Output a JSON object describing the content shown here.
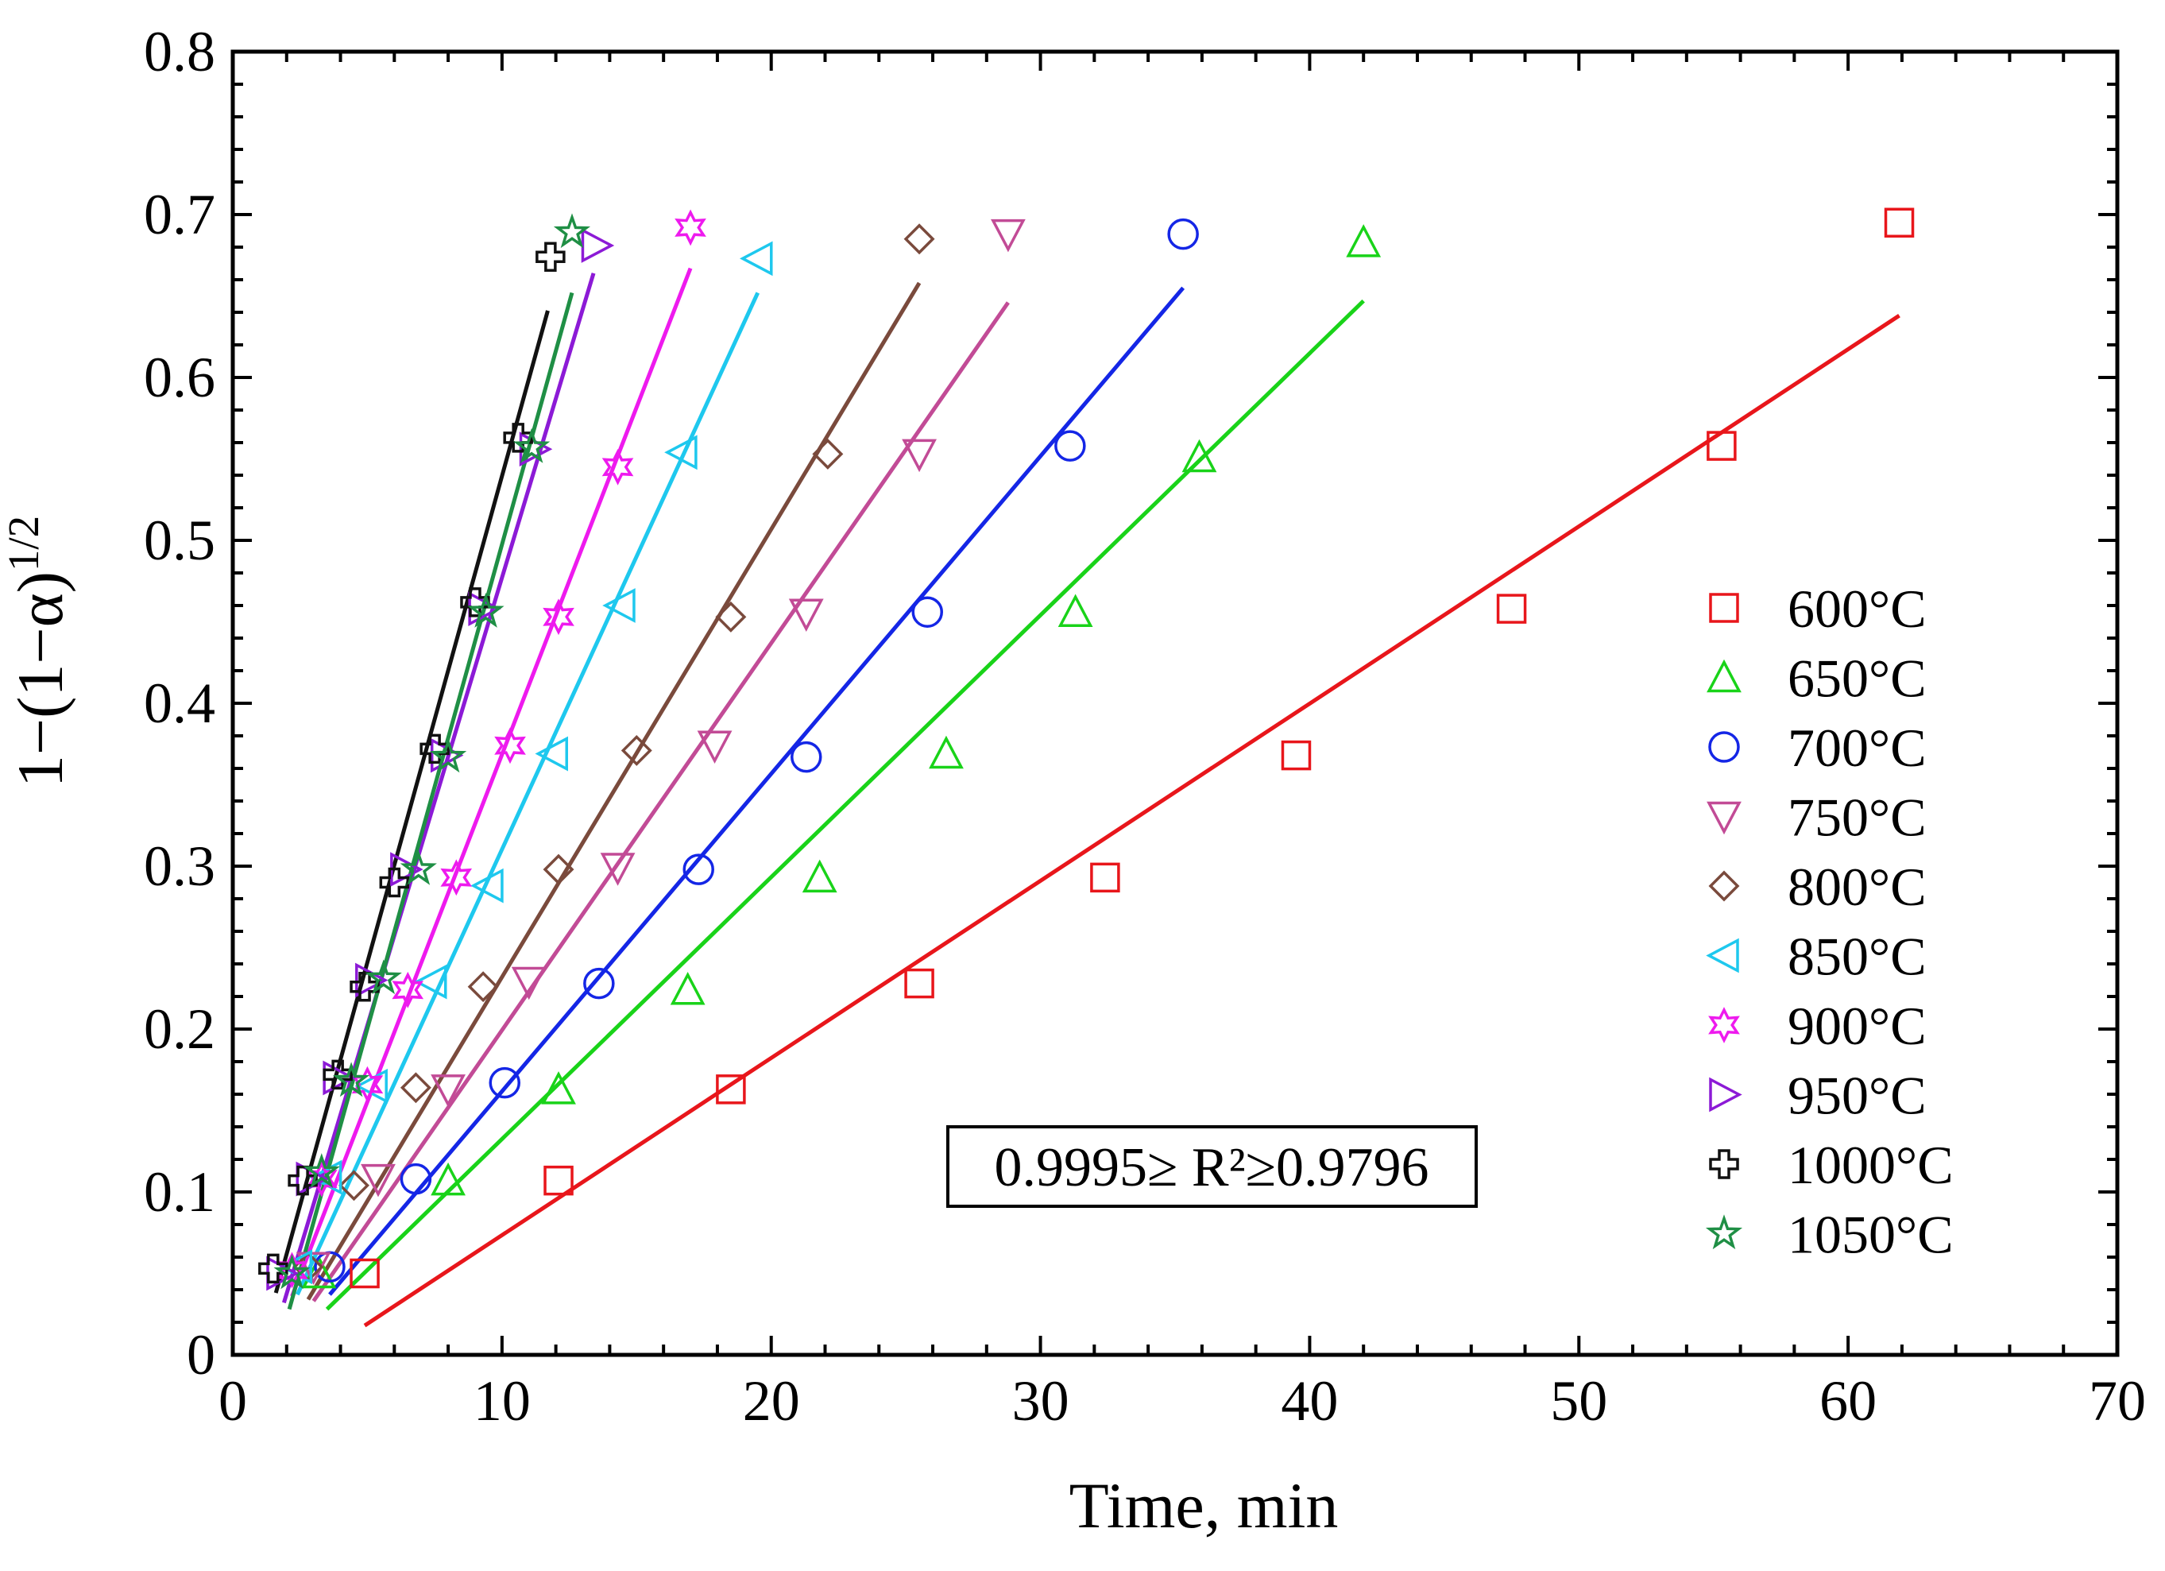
{
  "chart_data": {
    "type": "scatter",
    "title": "",
    "xlabel": "Time, min",
    "ylabel": "1−(1−α)",
    "ylabel_exponent": "1/2",
    "xlim": [
      0,
      70
    ],
    "ylim": [
      0,
      0.8
    ],
    "xticks": [
      "0",
      "10",
      "20",
      "30",
      "40",
      "50",
      "60",
      "70"
    ],
    "yticks": [
      "0",
      "0.1",
      "0.2",
      "0.3",
      "0.4",
      "0.5",
      "0.6",
      "0.7",
      "0.8"
    ],
    "grid": false,
    "legend_position": "right",
    "annotation": "0.9995≥ R²≥0.9796",
    "series": [
      {
        "name": "600°C",
        "color": "#e8161b",
        "marker": "square",
        "x": [
          4.9,
          12.1,
          18.5,
          25.5,
          32.4,
          39.5,
          47.5,
          55.3,
          61.9
        ],
        "y": [
          0.05,
          0.107,
          0.163,
          0.228,
          0.293,
          0.368,
          0.458,
          0.558,
          0.695
        ],
        "fit": [
          [
            4.9,
            0.018
          ],
          [
            61.9,
            0.638
          ]
        ]
      },
      {
        "name": "650°C",
        "color": "#19d319",
        "marker": "triangle-up",
        "x": [
          3.2,
          8.0,
          12.1,
          16.9,
          21.8,
          26.5,
          31.3,
          35.9,
          42.0
        ],
        "y": [
          0.05,
          0.107,
          0.163,
          0.224,
          0.293,
          0.369,
          0.456,
          0.551,
          0.683
        ],
        "fit": [
          [
            3.5,
            0.028
          ],
          [
            42.0,
            0.647
          ]
        ]
      },
      {
        "name": "700°C",
        "color": "#1426e6",
        "marker": "circle",
        "x": [
          3.6,
          6.8,
          10.1,
          13.6,
          17.3,
          21.3,
          25.8,
          31.1,
          35.3
        ],
        "y": [
          0.054,
          0.108,
          0.167,
          0.228,
          0.298,
          0.367,
          0.456,
          0.558,
          0.688
        ],
        "fit": [
          [
            3.6,
            0.037
          ],
          [
            35.3,
            0.655
          ]
        ]
      },
      {
        "name": "750°C",
        "color": "#c24b96",
        "marker": "triangle-down",
        "x": [
          3.0,
          5.4,
          8.0,
          11.0,
          14.3,
          17.9,
          21.3,
          25.5,
          28.8
        ],
        "y": [
          0.054,
          0.108,
          0.163,
          0.229,
          0.299,
          0.374,
          0.455,
          0.553,
          0.688
        ],
        "fit": [
          [
            3.0,
            0.033
          ],
          [
            28.8,
            0.646
          ]
        ]
      },
      {
        "name": "800°C",
        "color": "#7a4a3c",
        "marker": "diamond",
        "x": [
          2.8,
          4.5,
          6.8,
          9.3,
          12.1,
          15.0,
          18.5,
          22.1,
          25.5
        ],
        "y": [
          0.054,
          0.104,
          0.164,
          0.226,
          0.298,
          0.371,
          0.453,
          0.553,
          0.685
        ],
        "fit": [
          [
            2.8,
            0.034
          ],
          [
            25.5,
            0.658
          ]
        ]
      },
      {
        "name": "850°C",
        "color": "#1ec8ee",
        "marker": "triangle-left",
        "x": [
          2.4,
          3.5,
          5.2,
          7.4,
          9.5,
          11.9,
          14.4,
          16.7,
          19.5
        ],
        "y": [
          0.054,
          0.109,
          0.165,
          0.229,
          0.288,
          0.369,
          0.46,
          0.554,
          0.673
        ],
        "fit": [
          [
            2.4,
            0.037
          ],
          [
            19.5,
            0.652
          ]
        ]
      },
      {
        "name": "900°C",
        "color": "#ee1aee",
        "marker": "star6",
        "x": [
          2.2,
          3.3,
          5.0,
          6.5,
          8.3,
          10.3,
          12.1,
          14.3,
          17.0
        ],
        "y": [
          0.052,
          0.108,
          0.166,
          0.224,
          0.293,
          0.374,
          0.453,
          0.545,
          0.692
        ],
        "fit": [
          [
            2.2,
            0.036
          ],
          [
            17.0,
            0.667
          ]
        ]
      },
      {
        "name": "950°C",
        "color": "#8c1ad6",
        "marker": "triangle-right",
        "x": [
          1.8,
          2.9,
          3.9,
          5.1,
          6.4,
          7.9,
          9.3,
          11.2,
          13.5
        ],
        "y": [
          0.05,
          0.108,
          0.17,
          0.23,
          0.298,
          0.368,
          0.458,
          0.556,
          0.681
        ],
        "fit": [
          [
            1.9,
            0.032
          ],
          [
            13.4,
            0.664
          ]
        ]
      },
      {
        "name": "1000°C",
        "color": "#111111",
        "marker": "plus",
        "x": [
          1.5,
          2.6,
          3.9,
          4.9,
          6.0,
          7.5,
          9.0,
          10.6,
          11.8
        ],
        "y": [
          0.053,
          0.107,
          0.172,
          0.226,
          0.29,
          0.372,
          0.462,
          0.563,
          0.674
        ],
        "fit": [
          [
            1.6,
            0.038
          ],
          [
            11.7,
            0.641
          ]
        ]
      },
      {
        "name": "1050°C",
        "color": "#1f8f45",
        "marker": "star5",
        "x": [
          2.2,
          3.3,
          4.4,
          5.6,
          6.9,
          8.0,
          9.4,
          11.1,
          12.6
        ],
        "y": [
          0.05,
          0.112,
          0.168,
          0.231,
          0.298,
          0.367,
          0.456,
          0.557,
          0.689
        ],
        "fit": [
          [
            2.1,
            0.028
          ],
          [
            12.6,
            0.652
          ]
        ]
      }
    ]
  }
}
